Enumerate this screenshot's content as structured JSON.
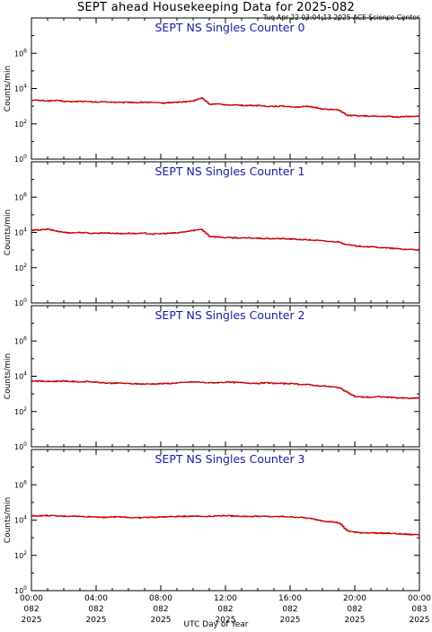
{
  "header": {
    "title": "SEPT ahead Housekeeping Data for 2025-082",
    "timestamp": "Tue Apr 22 03:04:13 2025 ACE Science Center"
  },
  "colors": {
    "line": "#cc0000",
    "panel_title": "#1a1aa8",
    "axis": "#000000"
  },
  "chart_data": [
    {
      "type": "line",
      "title": "SEPT NS Singles Counter 0",
      "ylabel": "Counts/min",
      "xlabel": "UTC Day of Year",
      "yscale": "log",
      "ylim": [
        1,
        100000000
      ],
      "y_ticks": [
        "10^0",
        "10^2",
        "10^4",
        "10^6"
      ],
      "x_hours": [
        0,
        0.5,
        1,
        1.5,
        2,
        2.5,
        3,
        3.5,
        4,
        4.5,
        5,
        5.5,
        6,
        6.5,
        7,
        7.5,
        8,
        8.5,
        9,
        9.5,
        10,
        10.5,
        11,
        11.5,
        12,
        12.5,
        13,
        13.5,
        14,
        14.5,
        15,
        15.5,
        16,
        16.5,
        17,
        17.5,
        18,
        18.5,
        19,
        19.5,
        20,
        20.5,
        21,
        21.5,
        22,
        22.5,
        23,
        23.5,
        24
      ],
      "series": [
        {
          "values": [
            2200,
            2100,
            2000,
            2100,
            1900,
            1800,
            1900,
            1800,
            1700,
            1800,
            1700,
            1600,
            1700,
            1600,
            1700,
            1600,
            1500,
            1600,
            1700,
            1800,
            2000,
            3000,
            1300,
            1300,
            1200,
            1200,
            1100,
            1100,
            1100,
            1000,
            1000,
            1000,
            950,
            900,
            950,
            850,
            700,
            650,
            600,
            300,
            290,
            280,
            270,
            260,
            270,
            240,
            260,
            270,
            280
          ]
        }
      ]
    },
    {
      "type": "line",
      "title": "SEPT NS Singles Counter 1",
      "ylabel": "Counts/min",
      "xlabel": "UTC Day of Year",
      "yscale": "log",
      "ylim": [
        1,
        100000000
      ],
      "y_ticks": [
        "10^0",
        "10^2",
        "10^4",
        "10^6"
      ],
      "x_hours": [
        0,
        0.5,
        1,
        1.5,
        2,
        2.5,
        3,
        3.5,
        4,
        4.5,
        5,
        5.5,
        6,
        6.5,
        7,
        7.5,
        8,
        8.5,
        9,
        9.5,
        10,
        10.5,
        11,
        11.5,
        12,
        12.5,
        13,
        13.5,
        14,
        14.5,
        15,
        15.5,
        16,
        16.5,
        17,
        17.5,
        18,
        18.5,
        19,
        19.5,
        20,
        20.5,
        21,
        21.5,
        22,
        22.5,
        23,
        23.5,
        24
      ],
      "series": [
        {
          "values": [
            13000,
            14000,
            15000,
            12000,
            10000,
            9500,
            10000,
            9000,
            9000,
            9500,
            9000,
            8500,
            9000,
            8500,
            9000,
            8000,
            8500,
            9000,
            9500,
            11000,
            13000,
            15000,
            6000,
            5500,
            5000,
            5000,
            4800,
            4800,
            4600,
            4500,
            4400,
            4400,
            4200,
            4000,
            3800,
            3600,
            3300,
            3000,
            2900,
            2000,
            1700,
            1600,
            1500,
            1400,
            1300,
            1200,
            1100,
            1100,
            1000
          ]
        }
      ]
    },
    {
      "type": "line",
      "title": "SEPT NS Singles Counter 2",
      "ylabel": "Counts/min",
      "xlabel": "UTC Day of Year",
      "yscale": "log",
      "ylim": [
        1,
        100000000
      ],
      "y_ticks": [
        "10^0",
        "10^2",
        "10^4",
        "10^6"
      ],
      "x_hours": [
        0,
        0.5,
        1,
        1.5,
        2,
        2.5,
        3,
        3.5,
        4,
        4.5,
        5,
        5.5,
        6,
        6.5,
        7,
        7.5,
        8,
        8.5,
        9,
        9.5,
        10,
        10.5,
        11,
        11.5,
        12,
        12.5,
        13,
        13.5,
        14,
        14.5,
        15,
        15.5,
        16,
        16.5,
        17,
        17.5,
        18,
        18.5,
        19,
        19.5,
        20,
        20.5,
        21,
        21.5,
        22,
        22.5,
        23,
        23.5,
        24
      ],
      "series": [
        {
          "values": [
            5500,
            5300,
            5000,
            5200,
            5400,
            5000,
            4800,
            5000,
            4500,
            4200,
            4000,
            4100,
            3800,
            3700,
            3600,
            3700,
            3800,
            3900,
            4200,
            4500,
            4800,
            4500,
            4200,
            4400,
            4600,
            4500,
            4300,
            4100,
            4000,
            4200,
            4000,
            3900,
            3800,
            3500,
            3400,
            3000,
            2800,
            2500,
            2300,
            1200,
            700,
            650,
            650,
            700,
            650,
            600,
            580,
            550,
            600
          ]
        }
      ]
    },
    {
      "type": "line",
      "title": "SEPT NS Singles Counter 3",
      "ylabel": "Counts/min",
      "xlabel": "UTC Day of Year",
      "yscale": "log",
      "ylim": [
        1,
        100000000
      ],
      "y_ticks": [
        "10^0",
        "10^2",
        "10^4",
        "10^6"
      ],
      "x_hours": [
        0,
        0.5,
        1,
        1.5,
        2,
        2.5,
        3,
        3.5,
        4,
        4.5,
        5,
        5.5,
        6,
        6.5,
        7,
        7.5,
        8,
        8.5,
        9,
        9.5,
        10,
        10.5,
        11,
        11.5,
        12,
        12.5,
        13,
        13.5,
        14,
        14.5,
        15,
        15.5,
        16,
        16.5,
        17,
        17.5,
        18,
        18.5,
        19,
        19.5,
        20,
        20.5,
        21,
        21.5,
        22,
        22.5,
        23,
        23.5,
        24
      ],
      "series": [
        {
          "values": [
            17000,
            17500,
            18000,
            17000,
            16500,
            17000,
            16000,
            15500,
            15000,
            14500,
            15000,
            15500,
            14000,
            13500,
            14000,
            14500,
            15000,
            15500,
            16000,
            16500,
            17000,
            16000,
            16500,
            17500,
            18000,
            17000,
            16500,
            16000,
            16500,
            16000,
            15500,
            16000,
            15000,
            14500,
            13000,
            11000,
            9000,
            8000,
            7000,
            2500,
            2000,
            1900,
            1900,
            1800,
            1800,
            1700,
            1600,
            1500,
            1500
          ]
        }
      ]
    }
  ],
  "x_axis": {
    "ticks": [
      {
        "time": "00:00",
        "day": "082",
        "year": "2025"
      },
      {
        "time": "04:00",
        "day": "082",
        "year": "2025"
      },
      {
        "time": "08:00",
        "day": "082",
        "year": "2025"
      },
      {
        "time": "12:00",
        "day": "082",
        "year": "2025"
      },
      {
        "time": "16:00",
        "day": "082",
        "year": "2025"
      },
      {
        "time": "20:00",
        "day": "082",
        "year": "2025"
      },
      {
        "time": "00:00",
        "day": "083",
        "year": "2025"
      }
    ],
    "label": "UTC Day of Year"
  }
}
